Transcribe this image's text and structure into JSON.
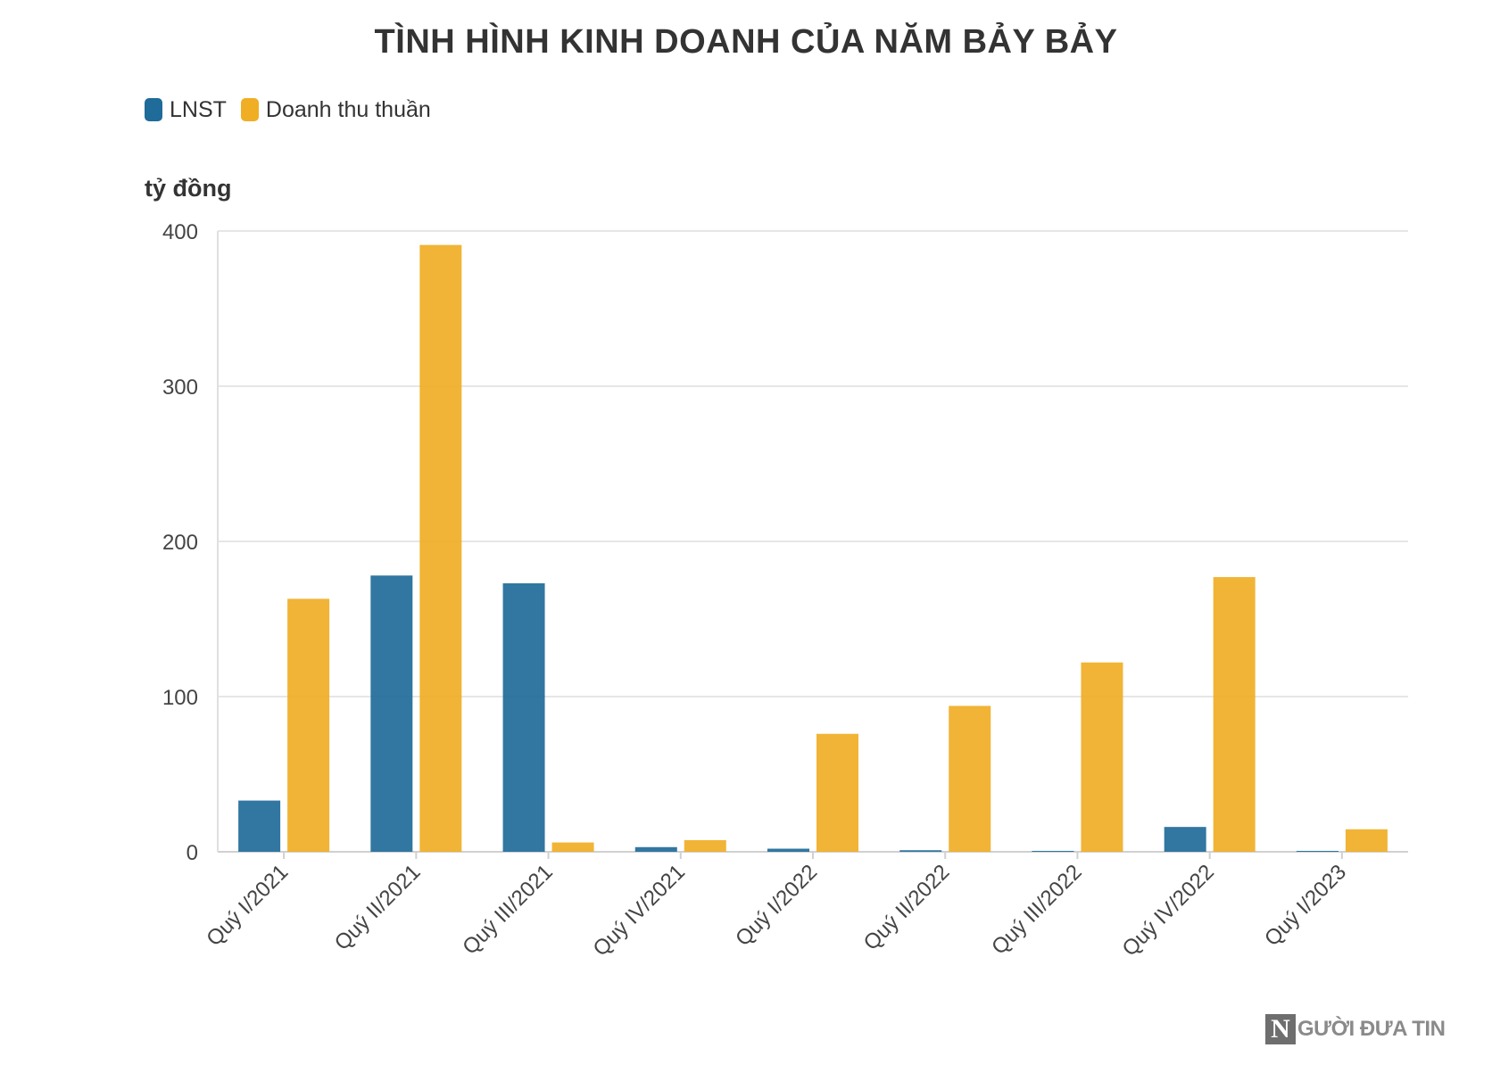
{
  "chart_data": {
    "type": "bar",
    "title": "TÌNH HÌNH KINH DOANH CỦA NĂM BẢY BẢY",
    "ylabel": "tỷ đồng",
    "xlabel": "",
    "ylim": [
      0,
      400
    ],
    "yticks": [
      0,
      100,
      200,
      300,
      400
    ],
    "grid": true,
    "legend_position": "top-left",
    "categories": [
      "Quý I/2021",
      "Quý II/2021",
      "Quý III/2021",
      "Quý IV/2021",
      "Quý I/2022",
      "Quý II/2022",
      "Quý III/2022",
      "Quý IV/2022",
      "Quý I/2023"
    ],
    "series": [
      {
        "name": "LNST",
        "color": "#1f6b99",
        "values": [
          33,
          178,
          173,
          3,
          2,
          1,
          0.5,
          16,
          0.3
        ]
      },
      {
        "name": "Doanh thu thuần",
        "color": "#f0ae25",
        "values": [
          163,
          391,
          6,
          7.5,
          76,
          94,
          122,
          177,
          14.5
        ]
      }
    ]
  },
  "watermark": {
    "letter": "N",
    "text": "GƯỜI ĐƯA TIN"
  }
}
